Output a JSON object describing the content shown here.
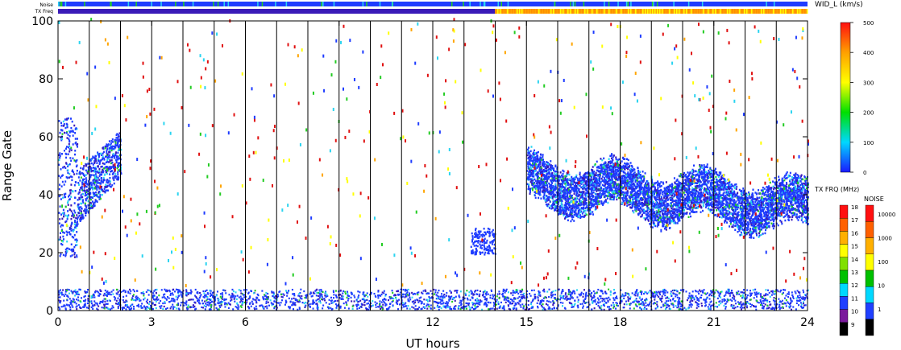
{
  "strips": {
    "noise_label": "Noise",
    "txfreq_label": "TX Freq"
  },
  "colorbar_width": {
    "title": "WID_L (km/s)",
    "ticks": [
      "500",
      "400",
      "300",
      "200",
      "100",
      "0"
    ]
  },
  "colorbar_txfreq": {
    "title": "TX FRQ (MHz)",
    "ticks": [
      "18",
      "17",
      "16",
      "15",
      "14",
      "13",
      "12",
      "11",
      "10",
      "9"
    ]
  },
  "colorbar_noise": {
    "title": "NOISE",
    "ticks": [
      "10000",
      "1000",
      "100",
      "10",
      "1"
    ]
  },
  "colors": {
    "blue": "#1e3cff",
    "navy": "#3a1ab8",
    "cyan": "#2ad4f0",
    "red": "#e01010",
    "orange": "#ffa500",
    "yellow": "#ffff00",
    "green": "#22cc22",
    "purple": "#7a1a9c"
  },
  "chart_data": {
    "type": "heatmap",
    "xlabel": "UT hours",
    "ylabel": "Range Gate",
    "xlim": [
      0,
      24
    ],
    "ylim": [
      0,
      100
    ],
    "xticks": [
      0,
      3,
      6,
      9,
      12,
      15,
      18,
      21,
      24
    ],
    "yticks": [
      0,
      20,
      40,
      60,
      80,
      100
    ],
    "scan_lines_hours": [
      1,
      2,
      3,
      4,
      5,
      6,
      7,
      8,
      9,
      10,
      11,
      12,
      13,
      14,
      15,
      16,
      17,
      18,
      19,
      20,
      21,
      22,
      23
    ],
    "txfreq_switch_hour": 14,
    "scatter_regions": [
      {
        "name": "early-echo",
        "x": [
          0,
          2
        ],
        "y": [
          18,
          65
        ],
        "value_range_kms": [
          0,
          120
        ]
      },
      {
        "name": "ground-band",
        "x": [
          0,
          24
        ],
        "y": [
          0,
          7
        ],
        "value_range_kms": [
          0,
          100
        ]
      },
      {
        "name": "patch-14h",
        "x": [
          13.1,
          14.0
        ],
        "y": [
          19,
          28
        ],
        "value_range_kms": [
          0,
          100
        ]
      },
      {
        "name": "main-echo",
        "x": [
          15,
          24
        ],
        "y": [
          25,
          55
        ],
        "value_range_kms": [
          0,
          120
        ]
      }
    ]
  }
}
